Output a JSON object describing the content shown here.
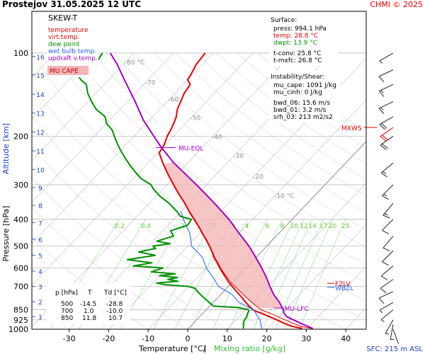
{
  "header": {
    "title": "Prostejov   31.05.2025 12 UTC",
    "credit": "CHMI © 2025"
  },
  "legend": {
    "title": "SKEW-T",
    "items": [
      {
        "label": "temperature",
        "color": "#e00000"
      },
      {
        "label": "virt.temp.",
        "color": "#e00000"
      },
      {
        "label": "dew point",
        "color": "#009000"
      },
      {
        "label": "wet bulb temp.",
        "color": "#2060ff"
      },
      {
        "label": "updraft v.temp.",
        "color": "#a000c0"
      }
    ],
    "cape_label": "MU CAPE"
  },
  "surface_box": {
    "heading": "Surface:",
    "lines": [
      {
        "text": "press: 994.1 hPa",
        "color": "#000000"
      },
      {
        "text": "temp: 28.8 °C",
        "color": "#e00000"
      },
      {
        "text": "dwpt: 13.9 °C",
        "color": "#009000"
      },
      {
        "text": "t-conv: 25.8 °C",
        "color": "#000000"
      },
      {
        "text": "t-mxfc: 26.8 °C",
        "color": "#000000"
      }
    ]
  },
  "instability_box": {
    "heading": "Instability/Shear:",
    "lines": [
      "mu_cape: 1091 J/kg",
      "mu_cinh: 0 J/kg",
      "bwd_06: 15.6 m/s",
      "bwd_01: 3.2 m/s",
      "srh_03: 213 m2/s2"
    ]
  },
  "level_table": {
    "headers": [
      "p [hPa]",
      "T",
      "Td [°C]"
    ],
    "rows": [
      [
        "500",
        "-14.5",
        "-28.8"
      ],
      [
        "700",
        "1.0",
        "-10.0"
      ],
      [
        "850",
        "11.8",
        "10.7"
      ]
    ]
  },
  "footer": {
    "xlabel_temp": "Temperature [°C]",
    "xlabel_sep": "/",
    "xlabel_mix": "Mixing ratio [g/kg]",
    "sfc": "SFC: 215 m ASL"
  },
  "chart_data": {
    "type": "line",
    "xlabel": "Temperature [°C] / Mixing ratio [g/kg]",
    "ylabel_pressure": "Pressure [hPa]",
    "ylabel_altitude": "Altitude [km]",
    "pressure_ticks": [
      100,
      200,
      300,
      400,
      500,
      600,
      700,
      850,
      925,
      1000
    ],
    "altitude_ticks": [
      "1",
      "2",
      "3",
      "4",
      "5",
      "6",
      "7",
      "8",
      "9",
      "10",
      "11",
      "12",
      "13",
      "14",
      "15",
      "16"
    ],
    "altitude_tick_pressures": [
      900,
      795,
      700,
      616,
      540,
      472,
      411,
      356,
      307,
      264,
      226,
      193,
      165,
      141,
      120,
      103
    ],
    "temperature_ticks": [
      -30,
      -20,
      -10,
      0,
      10,
      20,
      30,
      40
    ],
    "xlim": [
      -38,
      48
    ],
    "ylim": [
      1000,
      100
    ],
    "isotherm_labels": [
      {
        "value": -80,
        "text": "-80 °C",
        "p": 110
      },
      {
        "value": -70,
        "text": "-70",
        "p": 130
      },
      {
        "value": -60,
        "text": "-60",
        "p": 150
      },
      {
        "value": -50,
        "text": "-50",
        "p": 175
      },
      {
        "value": -40,
        "text": "-40",
        "p": 205
      },
      {
        "value": -30,
        "text": "-30",
        "p": 240
      },
      {
        "value": -20,
        "text": "-20",
        "p": 285
      },
      {
        "value": -10,
        "text": "-10 °C",
        "p": 335
      }
    ],
    "mixing_ratio_labels": [
      "0.2",
      "0.4",
      "1",
      "2",
      "3",
      "4",
      "6",
      "8",
      "10",
      "12",
      "14",
      "17",
      "20",
      "25"
    ],
    "mixing_ratio_values": [
      0.2,
      0.4,
      1,
      2,
      3,
      4,
      6,
      8,
      10,
      12,
      14,
      17,
      20,
      25
    ],
    "series": [
      {
        "name": "temperature",
        "color": "#e00000",
        "points": [
          [
            994,
            28.8
          ],
          [
            975,
            25.5
          ],
          [
            950,
            22.8
          ],
          [
            925,
            20.3
          ],
          [
            900,
            17.6
          ],
          [
            875,
            14.8
          ],
          [
            860,
            12.8
          ],
          [
            850,
            11.8
          ],
          [
            825,
            10.0
          ],
          [
            800,
            8.3
          ],
          [
            775,
            6.6
          ],
          [
            750,
            4.8
          ],
          [
            725,
            2.9
          ],
          [
            700,
            1.0
          ],
          [
            675,
            -1.0
          ],
          [
            650,
            -2.8
          ],
          [
            625,
            -4.7
          ],
          [
            600,
            -6.6
          ],
          [
            575,
            -8.5
          ],
          [
            550,
            -10.6
          ],
          [
            525,
            -12.4
          ],
          [
            500,
            -14.5
          ],
          [
            475,
            -16.8
          ],
          [
            450,
            -19.3
          ],
          [
            425,
            -21.9
          ],
          [
            400,
            -24.8
          ],
          [
            375,
            -27.9
          ],
          [
            350,
            -31.0
          ],
          [
            325,
            -34.6
          ],
          [
            300,
            -38.3
          ],
          [
            275,
            -42.2
          ],
          [
            250,
            -46.3
          ],
          [
            230,
            -49.6
          ],
          [
            215,
            -50.3
          ],
          [
            200,
            -51.6
          ],
          [
            190,
            -52.2
          ],
          [
            180,
            -53.0
          ],
          [
            170,
            -54.0
          ],
          [
            160,
            -55.5
          ],
          [
            150,
            -56.5
          ],
          [
            140,
            -57.6
          ],
          [
            130,
            -58.2
          ],
          [
            125,
            -60.0
          ],
          [
            120,
            -60.4
          ],
          [
            110,
            -61.5
          ],
          [
            100,
            -62.0
          ]
        ]
      },
      {
        "name": "virtual temperature",
        "color": "#e00000",
        "points": [
          [
            994,
            31.3
          ],
          [
            975,
            27.8
          ],
          [
            950,
            25.0
          ],
          [
            925,
            22.4
          ],
          [
            900,
            19.7
          ],
          [
            875,
            17.0
          ],
          [
            860,
            15.0
          ],
          [
            850,
            13.9
          ],
          [
            825,
            11.8
          ],
          [
            800,
            9.8
          ],
          [
            775,
            7.8
          ],
          [
            750,
            5.8
          ],
          [
            725,
            3.8
          ],
          [
            700,
            1.7
          ],
          [
            675,
            -0.5
          ],
          [
            650,
            -2.4
          ],
          [
            625,
            -4.4
          ],
          [
            600,
            -6.4
          ],
          [
            575,
            -8.3
          ],
          [
            550,
            -10.4
          ],
          [
            525,
            -12.3
          ],
          [
            500,
            -14.4
          ],
          [
            475,
            -16.7
          ],
          [
            450,
            -19.2
          ],
          [
            425,
            -21.8
          ],
          [
            400,
            -24.7
          ],
          [
            375,
            -27.8
          ],
          [
            350,
            -31.0
          ],
          [
            325,
            -34.6
          ],
          [
            300,
            -38.3
          ],
          [
            275,
            -42.2
          ],
          [
            250,
            -46.3
          ]
        ]
      },
      {
        "name": "dew point",
        "color": "#009000",
        "points": [
          [
            994,
            13.9
          ],
          [
            975,
            13.4
          ],
          [
            950,
            12.6
          ],
          [
            925,
            12.1
          ],
          [
            900,
            11.9
          ],
          [
            875,
            11.3
          ],
          [
            860,
            11.1
          ],
          [
            850,
            10.7
          ],
          [
            835,
            7.5
          ],
          [
            825,
            1.0
          ],
          [
            800,
            -1.0
          ],
          [
            775,
            -3.0
          ],
          [
            750,
            -5.0
          ],
          [
            725,
            -7.0
          ],
          [
            712,
            -7.9
          ],
          [
            700,
            -10.0
          ],
          [
            690,
            -16.5
          ],
          [
            680,
            -19.0
          ],
          [
            670,
            -14.0
          ],
          [
            660,
            -17.0
          ],
          [
            650,
            -15.0
          ],
          [
            640,
            -20.0
          ],
          [
            630,
            -16.5
          ],
          [
            620,
            -23.0
          ],
          [
            600,
            -21.0
          ],
          [
            590,
            -29.0
          ],
          [
            575,
            -25.0
          ],
          [
            560,
            -32.0
          ],
          [
            540,
            -26.0
          ],
          [
            525,
            -31.0
          ],
          [
            510,
            -27.5
          ],
          [
            500,
            -28.8
          ],
          [
            490,
            -25.0
          ],
          [
            480,
            -29.0
          ],
          [
            460,
            -26.0
          ],
          [
            440,
            -28.0
          ],
          [
            420,
            -25.0
          ],
          [
            400,
            -25.5
          ],
          [
            390,
            -29.0
          ],
          [
            375,
            -31.0
          ],
          [
            350,
            -35.0
          ],
          [
            330,
            -39.0
          ],
          [
            310,
            -42.5
          ],
          [
            300,
            -44.0
          ],
          [
            285,
            -48.0
          ],
          [
            270,
            -51.0
          ],
          [
            255,
            -54.0
          ],
          [
            240,
            -57.0
          ],
          [
            225,
            -60.0
          ],
          [
            215,
            -62.0
          ],
          [
            200,
            -65.0
          ],
          [
            190,
            -67.0
          ],
          [
            180,
            -70.0
          ],
          [
            170,
            -72.0
          ],
          [
            160,
            -76.0
          ],
          [
            150,
            -79.0
          ],
          [
            140,
            -82.0
          ],
          [
            130,
            -84.5
          ],
          [
            125,
            -87.0
          ],
          [
            120,
            -89.0
          ],
          [
            115,
            -88.5
          ],
          [
            110,
            -87.0
          ],
          [
            100,
            -88.0
          ]
        ]
      },
      {
        "name": "wet bulb temperature",
        "color": "#2060ff",
        "points": [
          [
            994,
            18.5
          ],
          [
            950,
            17.0
          ],
          [
            925,
            16.0
          ],
          [
            900,
            14.7
          ],
          [
            850,
            12.0
          ],
          [
            800,
            6.5
          ],
          [
            750,
            3.0
          ],
          [
            700,
            -2.5
          ],
          [
            650,
            -6.0
          ],
          [
            600,
            -10.0
          ],
          [
            550,
            -13.5
          ],
          [
            500,
            -19.0
          ],
          [
            450,
            -22.5
          ],
          [
            400,
            -27.5
          ],
          [
            375,
            -30.0
          ]
        ]
      },
      {
        "name": "updraft virtual temperature",
        "color": "#a000c0",
        "points": [
          [
            994,
            31.5
          ],
          [
            950,
            27.0
          ],
          [
            925,
            24.5
          ],
          [
            900,
            22.0
          ],
          [
            875,
            20.5
          ],
          [
            850,
            19.5
          ],
          [
            800,
            16.8
          ],
          [
            750,
            13.5
          ],
          [
            700,
            10.5
          ],
          [
            650,
            7.5
          ],
          [
            600,
            4.0
          ],
          [
            550,
            0.0
          ],
          [
            500,
            -4.5
          ],
          [
            450,
            -10.0
          ],
          [
            400,
            -16.0
          ],
          [
            350,
            -23.5
          ],
          [
            300,
            -32.5
          ],
          [
            250,
            -43.5
          ],
          [
            220,
            -50.3
          ],
          [
            200,
            -55.0
          ],
          [
            175,
            -61.5
          ],
          [
            150,
            -68.0
          ],
          [
            125,
            -76.0
          ],
          [
            110,
            -81.5
          ],
          [
            100,
            -86.0
          ]
        ]
      }
    ],
    "levels": [
      {
        "name": "MU-EQL",
        "p": 220,
        "color": "#a000c0"
      },
      {
        "name": "MU-LFC",
        "p": 838,
        "color": "#a000c0"
      },
      {
        "name": "FZLV",
        "p": 682,
        "color": "#e00000"
      },
      {
        "name": "WBZL",
        "p": 705,
        "color": "#2060ff"
      },
      {
        "name": "MXWS",
        "p": 186,
        "color": "#e00000"
      }
    ],
    "wind_barbs": [
      {
        "p": 1000,
        "dir": 160,
        "spd": 3
      },
      {
        "p": 960,
        "dir": 190,
        "spd": 5
      },
      {
        "p": 925,
        "dir": 210,
        "spd": 7
      },
      {
        "p": 850,
        "dir": 230,
        "spd": 7
      },
      {
        "p": 800,
        "dir": 240,
        "spd": 9
      },
      {
        "p": 730,
        "dir": 245,
        "spd": 10
      },
      {
        "p": 660,
        "dir": 235,
        "spd": 11
      },
      {
        "p": 590,
        "dir": 230,
        "spd": 12
      },
      {
        "p": 520,
        "dir": 225,
        "spd": 12
      },
      {
        "p": 460,
        "dir": 220,
        "spd": 13
      },
      {
        "p": 400,
        "dir": 225,
        "spd": 14
      },
      {
        "p": 350,
        "dir": 220,
        "spd": 15
      },
      {
        "p": 300,
        "dir": 225,
        "spd": 16
      },
      {
        "p": 250,
        "dir": 230,
        "spd": 17
      },
      {
        "p": 200,
        "dir": 235,
        "spd": 21
      },
      {
        "p": 186,
        "dir": 235,
        "spd": 24
      },
      {
        "p": 170,
        "dir": 240,
        "spd": 20
      },
      {
        "p": 150,
        "dir": 245,
        "spd": 19
      },
      {
        "p": 130,
        "dir": 245,
        "spd": 18
      },
      {
        "p": 115,
        "dir": 245,
        "spd": 12
      },
      {
        "p": 100,
        "dir": 240,
        "spd": 7
      }
    ]
  }
}
